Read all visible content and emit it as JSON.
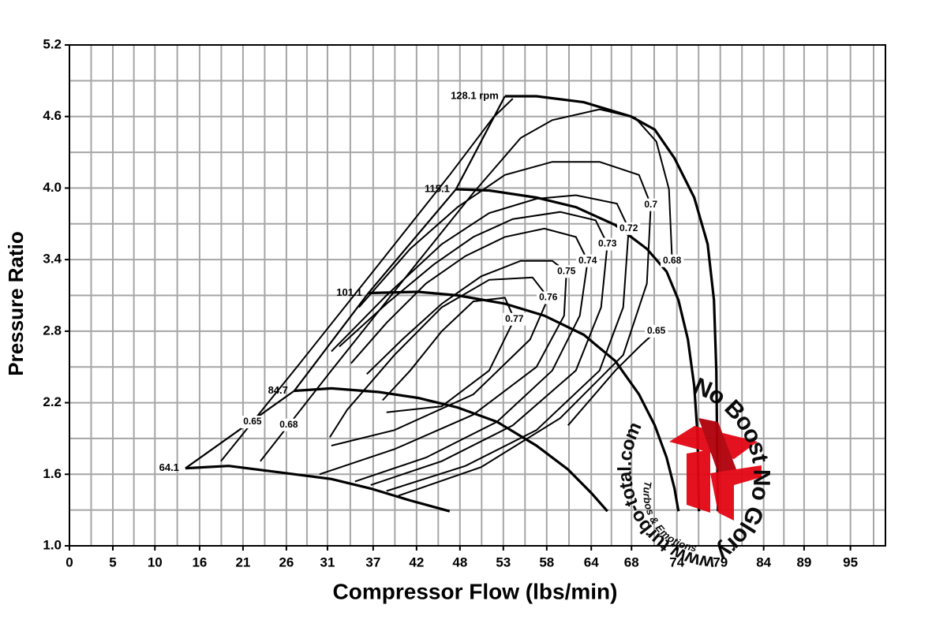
{
  "chart_data": {
    "type": "compressor_map",
    "x_label": "Compressor Flow (lbs/min)",
    "y_label": "Pressure Ratio",
    "xlim": [
      0,
      99.3
    ],
    "ylim": [
      1,
      5.2
    ],
    "xticks": [
      0,
      {
        "value": 5.28,
        "label": "5"
      },
      {
        "value": 10.4,
        "label": "10"
      },
      {
        "value": 15.84,
        "label": "16"
      },
      {
        "value": 21.12,
        "label": "21"
      },
      {
        "value": 26.4,
        "label": "26"
      },
      {
        "value": 31.4,
        "label": "31"
      },
      {
        "value": 36.96,
        "label": "37"
      },
      {
        "value": 42.24,
        "label": "42"
      },
      {
        "value": 47.52,
        "label": "48"
      },
      {
        "value": 52.8,
        "label": "53"
      },
      {
        "value": 58.08,
        "label": "58"
      },
      {
        "value": 63.5,
        "label": "64"
      },
      {
        "value": 68.4,
        "label": "68"
      },
      {
        "value": 73.92,
        "label": "74"
      },
      {
        "value": 79.2,
        "label": "79"
      },
      {
        "value": 84.48,
        "label": "84"
      },
      {
        "value": 89.4,
        "label": "89"
      },
      {
        "value": 95.04,
        "label": "95"
      }
    ],
    "yticks": [
      {
        "value": 1,
        "label": "1.0"
      },
      1.6,
      2.2,
      2.8,
      3.4,
      {
        "value": 4,
        "label": "4.0"
      },
      4.6,
      5.2
    ],
    "grid": true,
    "color": "#000000",
    "grid_color": "#a6a6a6",
    "surge_line": {
      "x": [
        14.11,
        27.36,
        36.38,
        47.04,
        52.99
      ],
      "values": [
        1.65,
        2.3,
        3.12,
        3.99,
        4.77
      ]
    },
    "speed_lines": [
      {
        "name": "128.1 rpm",
        "x": [
          52.99,
          56.83,
          62.59,
          68.35,
          71.23,
          73.63,
          76.03,
          77.66,
          78.43,
          78.72,
          78.82,
          78.91
        ],
        "values": [
          4.77,
          4.77,
          4.72,
          4.6,
          4.49,
          4.25,
          3.92,
          3.53,
          3.06,
          2.47,
          1.87,
          1.29
        ]
      },
      {
        "name": "115.1",
        "x": [
          47.04,
          51.07,
          56.83,
          61.63,
          66.43,
          70.27,
          72.67,
          74.11,
          75.26,
          76.03,
          76.42,
          76.61
        ],
        "values": [
          3.99,
          3.98,
          3.92,
          3.84,
          3.69,
          3.49,
          3.3,
          3.06,
          2.73,
          2.34,
          1.94,
          1.29
        ]
      },
      {
        "name": "101.1",
        "x": [
          36.38,
          42.43,
          47.23,
          52.99,
          57.79,
          62.59,
          66.43,
          69.31,
          71.23,
          72.67,
          73.63,
          74.11
        ],
        "values": [
          3.12,
          3.13,
          3.1,
          3.03,
          2.93,
          2.77,
          2.55,
          2.27,
          2.01,
          1.74,
          1.48,
          1.29
        ]
      },
      {
        "name": "84.7",
        "x": [
          27.36,
          31.87,
          37.63,
          42.43,
          47.23,
          52.03,
          56.83,
          60.67,
          63.55,
          65.47
        ],
        "values": [
          2.3,
          2.32,
          2.29,
          2.24,
          2.16,
          2.04,
          1.84,
          1.64,
          1.44,
          1.29
        ]
      },
      {
        "name": "64.1",
        "x": [
          14.11,
          19.39,
          25.15,
          31.87,
          36.67,
          41.47,
          46.27
        ],
        "values": [
          1.65,
          1.67,
          1.62,
          1.56,
          1.48,
          1.38,
          1.29
        ]
      }
    ],
    "efficiency_lines": [
      {
        "name": "0.77",
        "x": [
          38.59,
          45.31,
          51.07,
          54.14,
          52.99,
          49.15,
          45.31,
          41.47,
          38.11
        ],
        "values": [
          2.12,
          2.17,
          2.47,
          2.9,
          3.08,
          3.05,
          2.8,
          2.47,
          2.22
        ]
      },
      {
        "name": "0.76",
        "x": [
          31.87,
          39.55,
          49.15,
          56.06,
          58.27,
          56.35,
          51.07,
          45.31,
          39.55,
          33.79,
          31.68
        ],
        "values": [
          1.84,
          1.97,
          2.27,
          2.73,
          3.08,
          3.25,
          3.23,
          3.0,
          2.6,
          2.14,
          1.91
        ]
      },
      {
        "name": "0.75",
        "x": [
          30.43,
          39.55,
          49.15,
          56.83,
          60.19,
          60.48,
          58.75,
          54.91,
          50.11,
          45.31,
          40.51,
          36.19
        ],
        "values": [
          1.6,
          1.81,
          2.1,
          2.5,
          2.93,
          3.3,
          3.39,
          3.39,
          3.26,
          3.03,
          2.73,
          2.44
        ]
      },
      {
        "name": "0.74",
        "x": [
          34.75,
          43.39,
          52.03,
          58.75,
          62.11,
          63.07,
          61.63,
          57.79,
          52.99,
          48.19,
          43.39,
          38.59,
          34.27
        ],
        "values": [
          1.54,
          1.74,
          2.04,
          2.47,
          2.93,
          3.39,
          3.59,
          3.66,
          3.59,
          3.43,
          3.2,
          2.87,
          2.53
        ]
      },
      {
        "name": "0.73",
        "x": [
          36.67,
          45.31,
          53.95,
          61.63,
          64.7,
          65.47,
          64.03,
          59.71,
          53.95,
          49.15,
          44.35,
          38.59,
          32.83
        ],
        "values": [
          1.51,
          1.71,
          2.01,
          2.47,
          3.0,
          3.53,
          3.73,
          3.8,
          3.74,
          3.59,
          3.36,
          3.03,
          2.67
        ]
      },
      {
        "name": "0.72",
        "x": [
          38.59,
          48.19,
          56.83,
          64.51,
          67.39,
          68.06,
          66.62,
          61.63,
          56.83,
          51.07,
          45.31,
          38.59,
          31.87
        ],
        "values": [
          1.46,
          1.67,
          1.97,
          2.47,
          3.0,
          3.66,
          3.87,
          3.94,
          3.91,
          3.79,
          3.53,
          3.1,
          2.63
        ]
      },
      {
        "name": "0.7",
        "x": [
          40.03,
          50.11,
          59.71,
          67.39,
          70.27,
          70.75,
          69.31,
          64.51,
          58.75,
          52.99,
          47.23,
          41.47,
          35.23
        ],
        "values": [
          1.42,
          1.66,
          2.07,
          2.6,
          3.2,
          3.86,
          4.11,
          4.22,
          4.22,
          4.11,
          3.84,
          3.49,
          3.0
        ]
      },
      {
        "name": "0.68",
        "x": [
          23.23,
          31.87,
          41.47,
          49.15,
          54.91,
          58.75,
          64.51,
          68.83,
          71.42,
          72.96,
          73.34
        ],
        "values": [
          1.71,
          2.47,
          3.3,
          3.96,
          4.42,
          4.57,
          4.66,
          4.59,
          4.39,
          3.99,
          3.39
        ]
      },
      {
        "name": "0.65",
        "x": [
          18.43,
          28.03,
          37.63,
          46.27,
          51.55,
          53.95,
          null,
          60.67,
          66.43,
          69.5,
          71.42
        ],
        "values": [
          1.71,
          2.53,
          3.36,
          4.11,
          4.59,
          4.75,
          null,
          2.01,
          2.47,
          2.68,
          2.8
        ]
      }
    ]
  },
  "watermark": {
    "slogan": "No Boost No Glory",
    "url": "www.turbo-total.com",
    "tagline": "Turbos & Emotions"
  }
}
